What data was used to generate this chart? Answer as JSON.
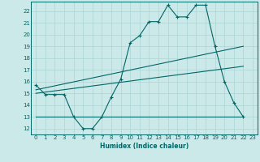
{
  "xlabel": "Humidex (Indice chaleur)",
  "ylabel": "",
  "background_color": "#cce9e9",
  "grid_color": "#aad4d4",
  "line_color": "#006666",
  "xlim": [
    -0.5,
    23.5
  ],
  "ylim": [
    11.5,
    22.8
  ],
  "yticks": [
    12,
    13,
    14,
    15,
    16,
    17,
    18,
    19,
    20,
    21,
    22
  ],
  "xticks": [
    0,
    1,
    2,
    3,
    4,
    5,
    6,
    7,
    8,
    9,
    10,
    11,
    12,
    13,
    14,
    15,
    16,
    17,
    18,
    19,
    20,
    21,
    22,
    23
  ],
  "main_x": [
    0,
    1,
    2,
    3,
    4,
    5,
    6,
    7,
    8,
    9,
    10,
    11,
    12,
    13,
    14,
    15,
    16,
    17,
    18,
    19,
    20,
    21,
    22
  ],
  "main_y": [
    15.7,
    14.9,
    14.9,
    14.9,
    13.0,
    12.0,
    12.0,
    13.0,
    14.7,
    16.2,
    19.3,
    19.9,
    21.1,
    21.1,
    22.5,
    21.5,
    21.5,
    22.5,
    22.5,
    19.0,
    16.0,
    14.2,
    13.0
  ],
  "line2_x": [
    0,
    22
  ],
  "line2_y": [
    15.3,
    19.0
  ],
  "line3_x": [
    0,
    22
  ],
  "line3_y": [
    15.0,
    17.3
  ],
  "line4_x": [
    0,
    22
  ],
  "line4_y": [
    13.0,
    13.0
  ]
}
